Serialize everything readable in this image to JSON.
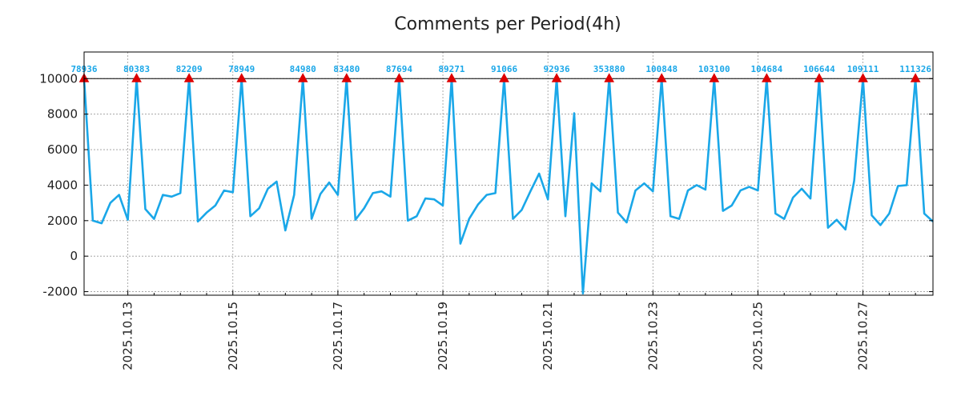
{
  "chart_data": {
    "type": "line",
    "title": "Comments per Period(4h)",
    "xlabel": "",
    "ylabel": "",
    "ylim": [
      -2200,
      11500
    ],
    "xlim": [
      0,
      97
    ],
    "reference_line": 10000,
    "grid": true,
    "line_color": "#1aa7e8",
    "marker_color": "#dd0000",
    "label_color": "#1aa7e8",
    "y_ticks": [
      -2000,
      0,
      2000,
      4000,
      6000,
      8000,
      10000
    ],
    "x_ticks": [
      {
        "x": 5,
        "label": "2025.10.13"
      },
      {
        "x": 17,
        "label": "2025.10.15"
      },
      {
        "x": 29,
        "label": "2025.10.17"
      },
      {
        "x": 41,
        "label": "2025.10.19"
      },
      {
        "x": 53,
        "label": "2025.10.21"
      },
      {
        "x": 65,
        "label": "2025.10.23"
      },
      {
        "x": 77,
        "label": "2025.10.25"
      },
      {
        "x": 89,
        "label": "2025.10.27"
      }
    ],
    "series": [
      {
        "name": "Comments",
        "values": [
          10000,
          2000,
          1850,
          3000,
          3450,
          2050,
          10000,
          2650,
          2100,
          3450,
          3350,
          3550,
          10000,
          1950,
          2450,
          2850,
          3700,
          3600,
          10000,
          2250,
          2700,
          3800,
          4200,
          1450,
          3450,
          10000,
          2100,
          3500,
          4150,
          3450,
          10000,
          2050,
          2700,
          3550,
          3650,
          3350,
          10000,
          2000,
          2250,
          3250,
          3200,
          2850,
          10000,
          700,
          2100,
          2900,
          3450,
          3550,
          10000,
          2100,
          2600,
          3650,
          4650,
          3200,
          10000,
          2250,
          8050,
          -2100,
          4100,
          3650,
          10000,
          2450,
          1900,
          3700,
          4100,
          3650,
          10000,
          2250,
          2100,
          3700,
          4000,
          3750,
          10000,
          2550,
          2850,
          3700,
          3900,
          3700,
          10000,
          2400,
          2100,
          3300,
          3800,
          3250,
          10000,
          1600,
          2050,
          1500,
          4250,
          10000,
          2300,
          1750,
          2400,
          3950,
          4000,
          10000,
          2400,
          1950
        ]
      }
    ],
    "peaks": [
      {
        "x": 0,
        "value": 10000,
        "label": "78936"
      },
      {
        "x": 6,
        "value": 10000,
        "label": "80383"
      },
      {
        "x": 12,
        "value": 10000,
        "label": "82209"
      },
      {
        "x": 18,
        "value": 10000,
        "label": "78949"
      },
      {
        "x": 25,
        "value": 10000,
        "label": "84980"
      },
      {
        "x": 30,
        "value": 10000,
        "label": "83480"
      },
      {
        "x": 36,
        "value": 10000,
        "label": "87694"
      },
      {
        "x": 42,
        "value": 10000,
        "label": "89271"
      },
      {
        "x": 48,
        "value": 10000,
        "label": "91066"
      },
      {
        "x": 54,
        "value": 10000,
        "label": "92936"
      },
      {
        "x": 60,
        "value": 10000,
        "label": "353880"
      },
      {
        "x": 66,
        "value": 10000,
        "label": "100848"
      },
      {
        "x": 72,
        "value": 10000,
        "label": "103100"
      },
      {
        "x": 78,
        "value": 10000,
        "label": "104684"
      },
      {
        "x": 84,
        "value": 10000,
        "label": "106644"
      },
      {
        "x": 89,
        "value": 10000,
        "label": "109111"
      },
      {
        "x": 95,
        "value": 10000,
        "label": "111326"
      }
    ]
  }
}
